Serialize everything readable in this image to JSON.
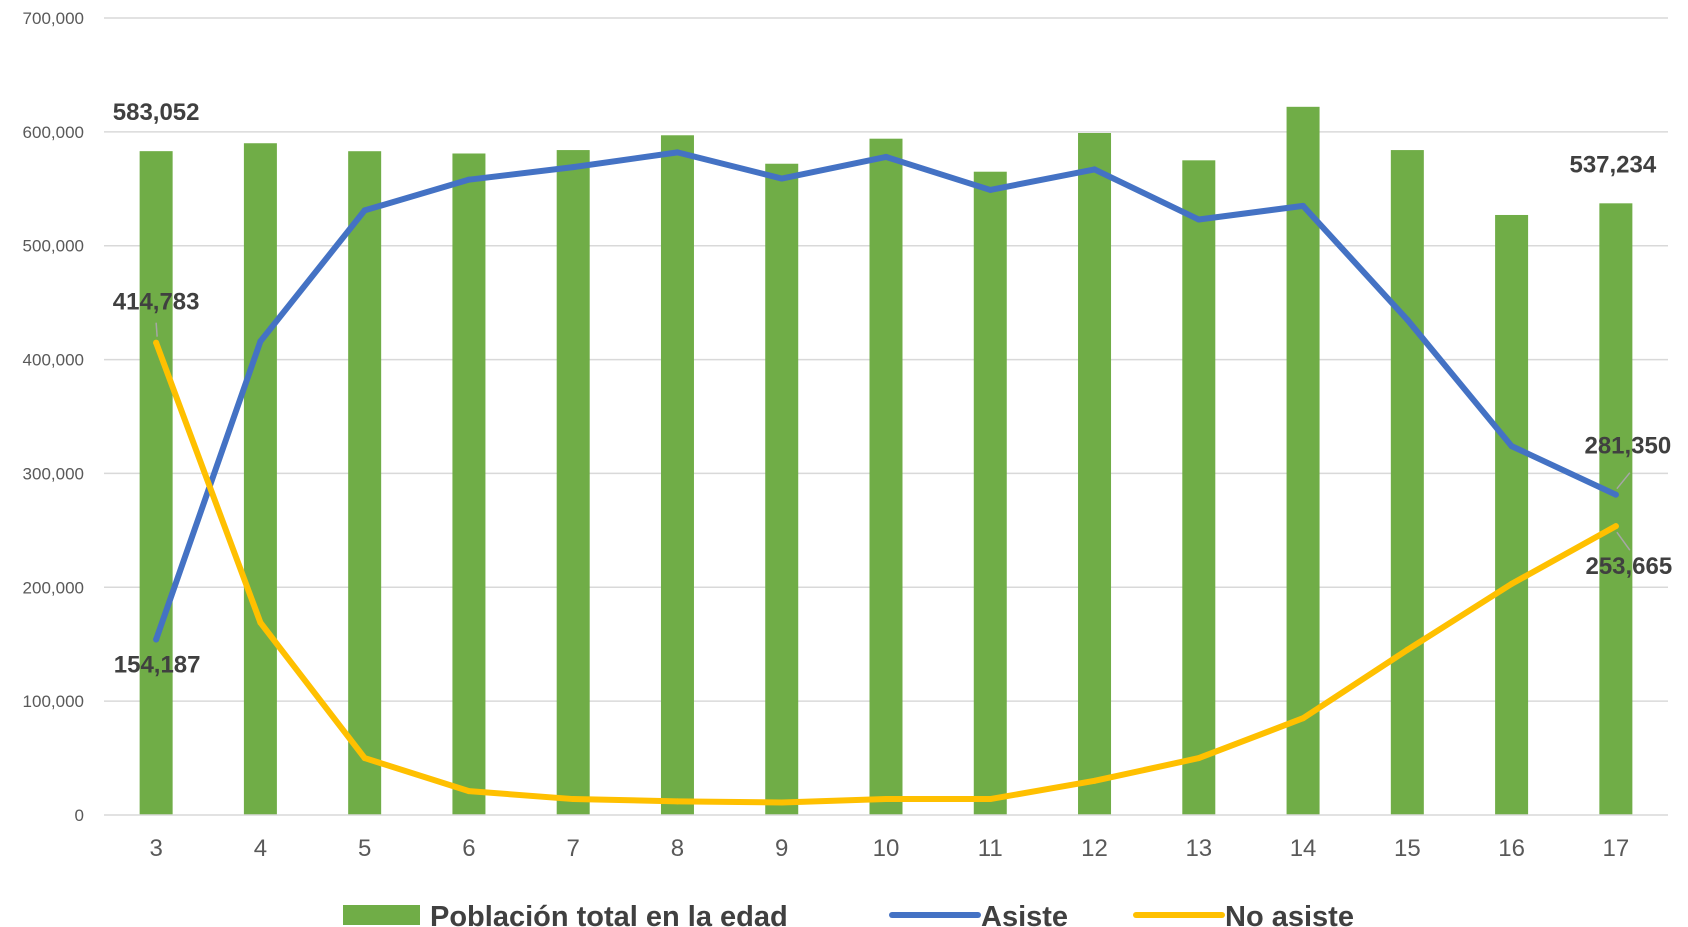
{
  "chart_data": {
    "type": "bar+line",
    "categories": [
      "3",
      "4",
      "5",
      "6",
      "7",
      "8",
      "9",
      "10",
      "11",
      "12",
      "13",
      "14",
      "15",
      "16",
      "17"
    ],
    "series": [
      {
        "name": "Población total en la edad",
        "type": "bar",
        "color": "#70AD47",
        "values": [
          583052,
          590000,
          583000,
          581000,
          584000,
          597000,
          572000,
          594000,
          565000,
          599000,
          575000,
          622000,
          584000,
          527000,
          537234
        ]
      },
      {
        "name": "Asiste",
        "type": "line",
        "color": "#4472C4",
        "values": [
          154187,
          416000,
          531000,
          558000,
          569000,
          582000,
          559000,
          578000,
          549000,
          567000,
          523000,
          535000,
          435000,
          324000,
          281350
        ]
      },
      {
        "name": "No asiste",
        "type": "line",
        "color": "#FFC000",
        "values": [
          414783,
          169000,
          50000,
          21000,
          14000,
          12000,
          11000,
          14000,
          14000,
          30000,
          50000,
          85000,
          145000,
          203000,
          253665
        ]
      }
    ],
    "ylim": [
      0,
      700000
    ],
    "yticks": [
      0,
      100000,
      200000,
      300000,
      400000,
      500000,
      600000,
      700000
    ],
    "ytick_labels": [
      "0",
      "100,000",
      "200,000",
      "300,000",
      "400,000",
      "500,000",
      "600,000",
      "700,000"
    ],
    "grid": true,
    "legend_position": "bottom",
    "data_labels": [
      {
        "series": 0,
        "index": 0,
        "text": "583,052"
      },
      {
        "series": 0,
        "index": 14,
        "text": "537,234"
      },
      {
        "series": 1,
        "index": 0,
        "text": "154,187"
      },
      {
        "series": 1,
        "index": 14,
        "text": "281,350"
      },
      {
        "series": 2,
        "index": 0,
        "text": "414,783"
      },
      {
        "series": 2,
        "index": 14,
        "text": "253,665"
      }
    ]
  }
}
